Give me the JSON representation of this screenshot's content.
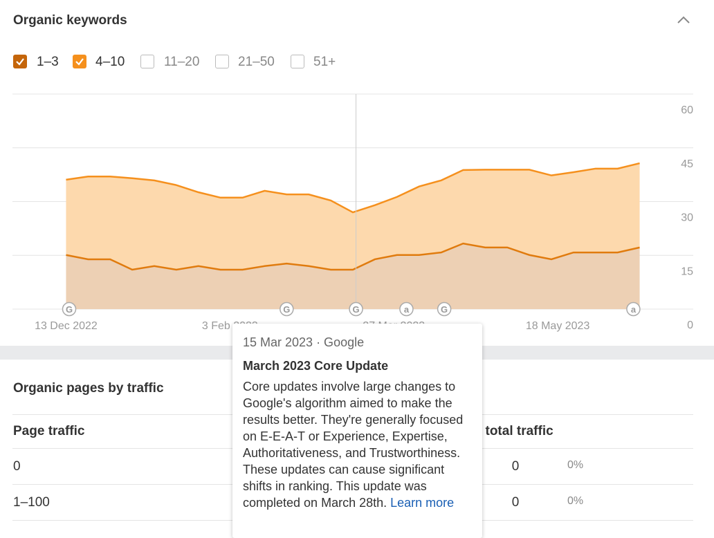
{
  "header": {
    "title": "Organic keywords"
  },
  "chart_data": {
    "type": "stacked-area",
    "x": [
      "13 Dec 2022",
      "20 Dec 2022",
      "27 Dec 2022",
      "3 Jan 2023",
      "10 Jan 2023",
      "17 Jan 2023",
      "24 Jan 2023",
      "31 Jan 2023",
      "7 Feb 2023",
      "14 Feb 2023",
      "21 Feb 2023",
      "28 Feb 2023",
      "7 Mar 2023",
      "14 Mar 2023",
      "21 Mar 2023",
      "28 Mar 2023",
      "4 Apr 2023",
      "11 Apr 2023",
      "18 Apr 2023",
      "25 Apr 2023",
      "2 May 2023",
      "9 May 2023",
      "16 May 2023",
      "23 May 2023",
      "30 May 2023",
      "6 Jun 2023",
      "13 Jun 2023"
    ],
    "series": [
      {
        "name": "1–3",
        "color": "#e07b0e",
        "fill": "#edd0b4",
        "values": [
          15.1,
          13.9,
          13.9,
          11,
          12,
          11,
          12,
          11,
          11,
          12,
          12.7,
          12,
          11,
          11,
          13.9,
          15.1,
          15.1,
          15.8,
          18.3,
          17.2,
          17.2,
          15.1,
          13.9,
          15.8,
          15.8,
          15.8,
          17.2
        ]
      },
      {
        "name": "4–10",
        "color": "#f5901d",
        "fill": "#fdd9ad",
        "values": [
          21,
          23.1,
          23.1,
          25.5,
          23.9,
          23.6,
          20.6,
          20.1,
          20.1,
          21,
          19.3,
          20,
          19.3,
          16,
          15.1,
          16.2,
          19.1,
          20.1,
          20.5,
          21.7,
          21.7,
          23.8,
          23.4,
          22.4,
          23.4,
          23.4,
          23.5
        ]
      }
    ],
    "xlim": [
      "26 Nov 2022",
      "30 Jun 2023"
    ],
    "xticks": [
      "13 Dec 2022",
      "3 Feb 2023",
      "27 Mar 2023",
      "18 May 2023"
    ],
    "ylim": [
      0,
      60
    ],
    "yticks": [
      0,
      15,
      30,
      45,
      60
    ],
    "grid": true,
    "annotations": [
      {
        "x": "14 Dec 2022",
        "label": "G"
      },
      {
        "x": "21 Feb 2023",
        "label": "G"
      },
      {
        "x": "15 Mar 2023",
        "label": "G"
      },
      {
        "x": "31 Mar 2023",
        "label": "a"
      },
      {
        "x": "12 Apr 2023",
        "label": "G"
      },
      {
        "x": "11 Jun 2023",
        "label": "a"
      }
    ],
    "range_filters": [
      "11–20",
      "21–50",
      "51+"
    ]
  },
  "tooltip": {
    "date": "15 Mar 2023 · Google",
    "title": "March 2023 Core Update",
    "body": "Core updates involve large changes to Google's algorithm aimed to make the results better. They're generally focused on E-E-A-T or Experience, Expertise, Authoritativeness, and Trustworthiness. These updates can cause significant shifts in ranking. This update was completed on March 28th.",
    "link": "Learn more"
  },
  "pages": {
    "title": "Organic pages by traffic",
    "columns": [
      "Page traffic",
      "Pages’ total traffic"
    ],
    "rows": [
      [
        "0",
        "0",
        "0%"
      ],
      [
        "1–100",
        "0",
        "0%"
      ]
    ]
  }
}
